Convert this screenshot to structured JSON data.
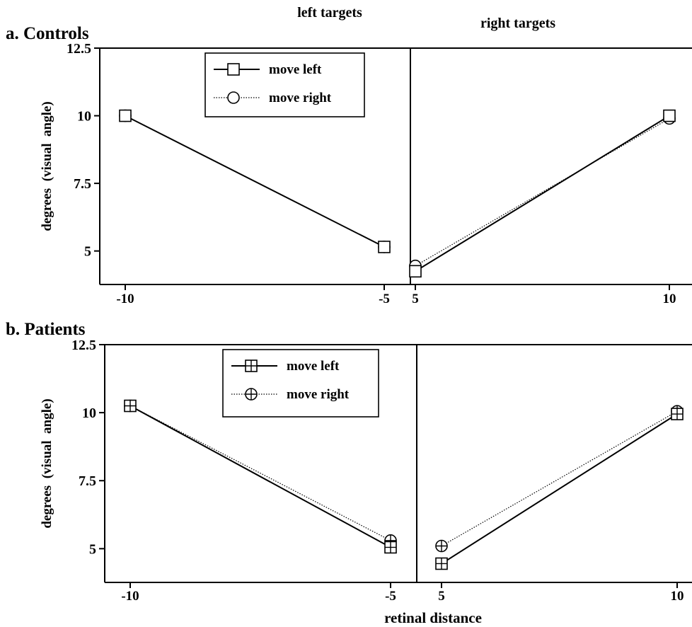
{
  "headers": {
    "left_targets": "left targets",
    "right_targets": "right targets"
  },
  "xlabel": "retinal distance",
  "chart_data": [
    {
      "type": "line",
      "title": "a. Controls",
      "ylabel": "degrees  (visual  angle)",
      "ylim": [
        3.5,
        12.5
      ],
      "yticks": [
        "12.5",
        "10",
        "7.5",
        "5"
      ],
      "legend": {
        "position": "top-center-left",
        "entries": [
          "move left",
          "move right"
        ]
      },
      "panels": [
        {
          "name": "left targets",
          "x": [
            -10,
            -5
          ],
          "xticks": [
            "-10",
            "-5"
          ],
          "series": [
            {
              "name": "move left",
              "values": [
                10.0,
                5.15
              ]
            },
            {
              "name": "move right",
              "values": [
                10.0,
                5.15
              ]
            }
          ]
        },
        {
          "name": "right targets",
          "x": [
            5,
            10
          ],
          "xticks": [
            "5",
            "10"
          ],
          "series": [
            {
              "name": "move left",
              "values": [
                4.25,
                10.0
              ]
            },
            {
              "name": "move right",
              "values": [
                4.45,
                9.9
              ]
            }
          ]
        }
      ]
    },
    {
      "type": "line",
      "title": "b. Patients",
      "ylabel": "degrees  (visual  angle)",
      "ylim": [
        3.5,
        12.5
      ],
      "yticks": [
        "12.5",
        "10",
        "7.5",
        "5"
      ],
      "legend": {
        "position": "top-center-left",
        "entries": [
          "move left",
          "move right"
        ]
      },
      "panels": [
        {
          "name": "left targets",
          "x": [
            -10,
            -5
          ],
          "xticks": [
            "-10",
            "-5"
          ],
          "series": [
            {
              "name": "move left",
              "values": [
                10.25,
                5.05
              ]
            },
            {
              "name": "move right",
              "values": [
                10.25,
                5.3
              ]
            }
          ]
        },
        {
          "name": "right targets",
          "x": [
            5,
            10
          ],
          "xticks": [
            "5",
            "10"
          ],
          "series": [
            {
              "name": "move left",
              "values": [
                4.45,
                9.95
              ]
            },
            {
              "name": "move right",
              "values": [
                5.1,
                10.05
              ]
            }
          ]
        }
      ]
    }
  ]
}
